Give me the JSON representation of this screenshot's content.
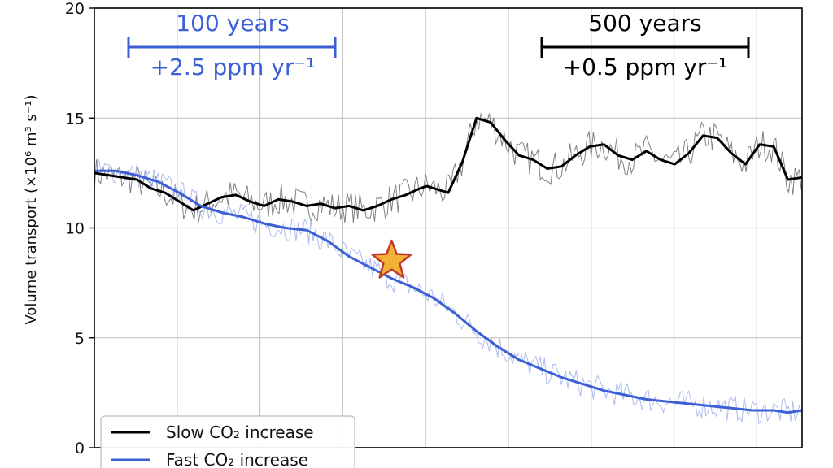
{
  "chart_data": {
    "type": "line",
    "ylabel": "Volume transport (×10⁶ m³ s⁻¹)",
    "ylim": [
      0,
      20
    ],
    "yticks": [
      "0",
      "5",
      "10",
      "15",
      "20"
    ],
    "xlim": [
      0,
      1000
    ],
    "xgrid": [
      0,
      117,
      234,
      351,
      468,
      585,
      702,
      819,
      936
    ],
    "grid": true,
    "legend_position": "bottom-left",
    "colors": {
      "slow": "#000000",
      "fast": "#3b5fd4",
      "star_fill": "#f2b233",
      "star_edge": "#c0392b"
    },
    "series": [
      {
        "name": "Slow CO₂ increase",
        "x": [
          0,
          20,
          40,
          60,
          80,
          100,
          120,
          140,
          160,
          180,
          200,
          220,
          240,
          260,
          280,
          300,
          320,
          340,
          360,
          380,
          400,
          420,
          440,
          460,
          470,
          480,
          500,
          520,
          540,
          560,
          580,
          600,
          620,
          640,
          660,
          680,
          700,
          720,
          740,
          760,
          780,
          800,
          820,
          840,
          860,
          880,
          900,
          920,
          940,
          960,
          980,
          1000
        ],
        "y": [
          12.5,
          12.4,
          12.3,
          12.2,
          11.8,
          11.6,
          11.2,
          10.8,
          11.1,
          11.4,
          11.5,
          11.2,
          11.0,
          11.3,
          11.2,
          11.0,
          11.1,
          10.9,
          11.0,
          10.8,
          11.0,
          11.3,
          11.5,
          11.8,
          11.9,
          11.8,
          11.6,
          13.0,
          15.0,
          14.8,
          14.0,
          13.3,
          13.1,
          12.7,
          12.8,
          13.3,
          13.7,
          13.8,
          13.3,
          13.1,
          13.5,
          13.1,
          12.9,
          13.4,
          14.2,
          14.1,
          13.4,
          12.9,
          13.8,
          13.7,
          12.2,
          12.3
        ]
      },
      {
        "name": "Fast CO₂ increase",
        "x": [
          0,
          30,
          60,
          90,
          120,
          150,
          180,
          210,
          240,
          270,
          300,
          330,
          360,
          390,
          420,
          450,
          480,
          510,
          540,
          570,
          600,
          630,
          660,
          690,
          720,
          750,
          780,
          810,
          840,
          870,
          900,
          930,
          960,
          980,
          1000
        ],
        "y": [
          12.6,
          12.6,
          12.4,
          12.1,
          11.6,
          11.0,
          10.7,
          10.5,
          10.2,
          10.0,
          9.9,
          9.4,
          8.7,
          8.2,
          7.7,
          7.3,
          6.8,
          6.1,
          5.3,
          4.6,
          4.0,
          3.6,
          3.2,
          2.9,
          2.6,
          2.4,
          2.2,
          2.1,
          2.0,
          1.9,
          1.8,
          1.7,
          1.7,
          1.6,
          1.7
        ]
      }
    ],
    "marker": {
      "x": 420,
      "y": 8.5
    },
    "annotations": [
      {
        "text": "100 years",
        "subtext": "+2.5 ppm yr⁻¹",
        "color": "#3b5fd4"
      },
      {
        "text": "500 years",
        "subtext": "+0.5 ppm yr⁻¹",
        "color": "#000000"
      }
    ]
  }
}
